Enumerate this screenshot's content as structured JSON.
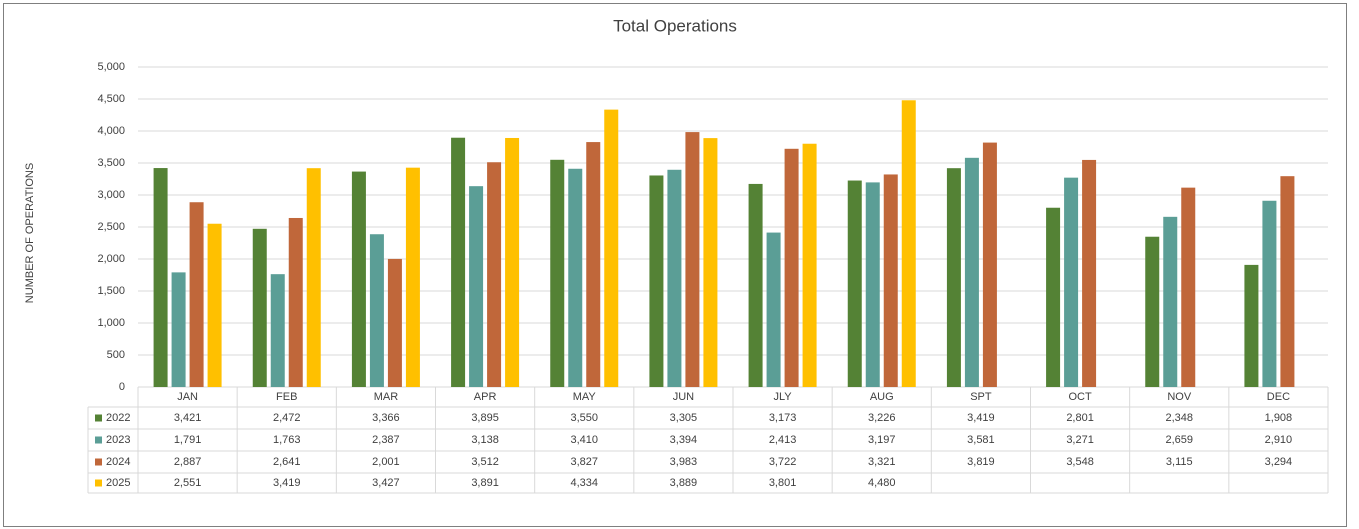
{
  "chart_data": {
    "type": "bar",
    "title": "Total Operations",
    "y_label": "NUMBER OF OPERATIONS",
    "categories": [
      "JAN",
      "FEB",
      "MAR",
      "APR",
      "MAY",
      "JUN",
      "JLY",
      "AUG",
      "SPT",
      "OCT",
      "NOV",
      "DEC"
    ],
    "series": [
      {
        "name": "2022",
        "color": "#548235",
        "values": [
          3421,
          2472,
          3366,
          3895,
          3550,
          3305,
          3173,
          3226,
          3419,
          2801,
          2348,
          1908
        ],
        "value_labels": [
          "3,421",
          "2,472",
          "3,366",
          "3,895",
          "3,550",
          "3,305",
          "3,173",
          "3,226",
          "3,419",
          "2,801",
          "2,348",
          "1,908"
        ]
      },
      {
        "name": "2023",
        "color": "#5b9e96",
        "values": [
          1791,
          1763,
          2387,
          3138,
          3410,
          3394,
          2413,
          3197,
          3581,
          3271,
          2659,
          2910
        ],
        "value_labels": [
          "1,791",
          "1,763",
          "2,387",
          "3,138",
          "3,410",
          "3,394",
          "2,413",
          "3,197",
          "3,581",
          "3,271",
          "2,659",
          "2,910"
        ]
      },
      {
        "name": "2024",
        "color": "#c0673a",
        "values": [
          2887,
          2641,
          2001,
          3512,
          3827,
          3983,
          3722,
          3321,
          3819,
          3548,
          3115,
          3294
        ],
        "value_labels": [
          "2,887",
          "2,641",
          "2,001",
          "3,512",
          "3,827",
          "3,983",
          "3,722",
          "3,321",
          "3,819",
          "3,548",
          "3,115",
          "3,294"
        ]
      },
      {
        "name": "2025",
        "color": "#ffc000",
        "values": [
          2551,
          3419,
          3427,
          3891,
          4334,
          3889,
          3801,
          4480,
          null,
          null,
          null,
          null
        ],
        "value_labels": [
          "2,551",
          "3,419",
          "3,427",
          "3,891",
          "4,334",
          "3,889",
          "3,801",
          "4,480",
          null,
          null,
          null,
          null
        ]
      }
    ],
    "ylim": [
      0,
      5000
    ],
    "yticks": [
      0,
      500,
      {
        "value": 1000,
        "label": "1,000"
      },
      {
        "value": 1500,
        "label": "1,500"
      },
      {
        "value": 2000,
        "label": "2,000"
      },
      {
        "value": 2500,
        "label": "2,500"
      },
      {
        "value": 3000,
        "label": "3,000"
      },
      {
        "value": 3500,
        "label": "3,500"
      },
      {
        "value": 4000,
        "label": "4,000"
      },
      {
        "value": 4500,
        "label": "4,500"
      },
      {
        "value": 5000,
        "label": "5,000"
      }
    ],
    "grid": true
  }
}
